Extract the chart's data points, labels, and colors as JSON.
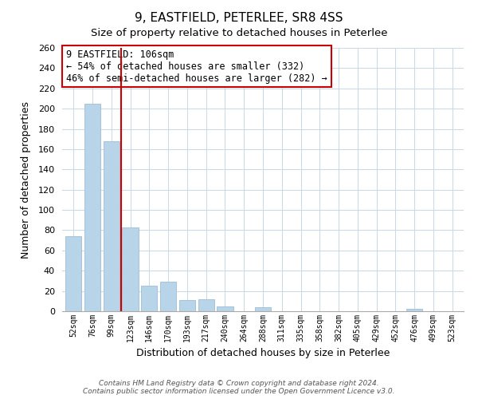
{
  "title": "9, EASTFIELD, PETERLEE, SR8 4SS",
  "subtitle": "Size of property relative to detached houses in Peterlee",
  "xlabel": "Distribution of detached houses by size in Peterlee",
  "ylabel": "Number of detached properties",
  "categories": [
    "52sqm",
    "76sqm",
    "99sqm",
    "123sqm",
    "146sqm",
    "170sqm",
    "193sqm",
    "217sqm",
    "240sqm",
    "264sqm",
    "288sqm",
    "311sqm",
    "335sqm",
    "358sqm",
    "382sqm",
    "405sqm",
    "429sqm",
    "452sqm",
    "476sqm",
    "499sqm",
    "523sqm"
  ],
  "values": [
    74,
    205,
    168,
    83,
    25,
    29,
    11,
    12,
    5,
    0,
    4,
    0,
    0,
    0,
    0,
    0,
    0,
    0,
    2,
    0,
    0
  ],
  "bar_color": "#b8d4e8",
  "bar_edge_color": "#9fbdd6",
  "vline_x": 2.5,
  "vline_color": "#cc0000",
  "ylim": [
    0,
    260
  ],
  "yticks": [
    0,
    20,
    40,
    60,
    80,
    100,
    120,
    140,
    160,
    180,
    200,
    220,
    240,
    260
  ],
  "annotation_title": "9 EASTFIELD: 106sqm",
  "annotation_line1": "← 54% of detached houses are smaller (332)",
  "annotation_line2": "46% of semi-detached houses are larger (282) →",
  "annotation_box_color": "#ffffff",
  "annotation_box_edge": "#cc0000",
  "footnote1": "Contains HM Land Registry data © Crown copyright and database right 2024.",
  "footnote2": "Contains public sector information licensed under the Open Government Licence v3.0.",
  "bg_color": "#ffffff",
  "grid_color": "#c8d8e8"
}
